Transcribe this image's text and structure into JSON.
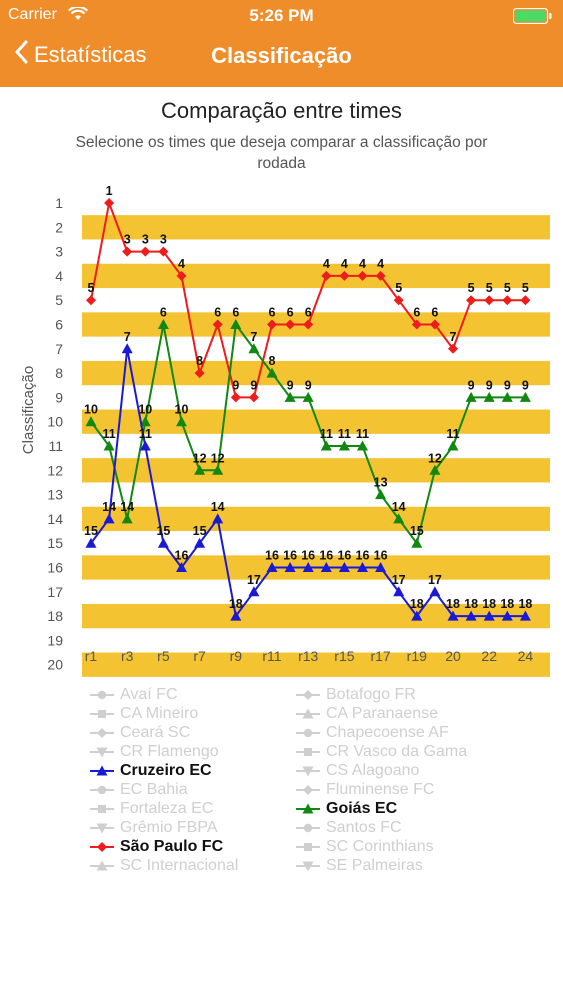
{
  "status_bar": {
    "carrier": "Carrier",
    "time": "5:26 PM"
  },
  "nav": {
    "back_label": "Estatísticas",
    "title": "Classificação"
  },
  "header": {
    "title": "Comparação entre times",
    "subtitle": "Selecione os times que deseja comparar a classificação por rodada"
  },
  "colors": {
    "accent": "#ee8d2a",
    "band": "#f3c331",
    "red": "#ee1c1c",
    "blue": "#1a1ad6",
    "green": "#118811",
    "inactive": "#cfcfcf"
  },
  "chart_data": {
    "type": "line",
    "ylabel": "Classificação",
    "y_inverted": true,
    "ylim": [
      1,
      20
    ],
    "y_ticks": [
      "1",
      "2",
      "3",
      "4",
      "5",
      "6",
      "7",
      "8",
      "9",
      "10",
      "11",
      "12",
      "13",
      "14",
      "15",
      "16",
      "17",
      "18",
      "19",
      "20"
    ],
    "x_ticks": [
      "r1",
      "r3",
      "r5",
      "r7",
      "r9",
      "r11",
      "r13",
      "r15",
      "r17",
      "r19",
      "20",
      "22",
      "24"
    ],
    "x_rounds": [
      1,
      2,
      3,
      4,
      5,
      6,
      7,
      8,
      9,
      10,
      11,
      12,
      13,
      14,
      15,
      16,
      17,
      18,
      19,
      20,
      21,
      22,
      23,
      24,
      25
    ],
    "series": [
      {
        "name": "São Paulo FC",
        "color": "#ee1c1c",
        "marker": "diamond",
        "values": [
          5,
          1,
          3,
          3,
          3,
          4,
          8,
          6,
          9,
          9,
          6,
          6,
          6,
          4,
          4,
          4,
          4,
          5,
          6,
          6,
          7,
          5,
          5,
          5,
          5
        ]
      },
      {
        "name": "Goiás EC",
        "color": "#118811",
        "marker": "triangle",
        "values": [
          10,
          11,
          14,
          10,
          6,
          10,
          12,
          12,
          6,
          7,
          8,
          9,
          9,
          11,
          11,
          11,
          13,
          14,
          15,
          12,
          11,
          9,
          9,
          9,
          9
        ]
      },
      {
        "name": "Cruzeiro EC",
        "color": "#1a1ad6",
        "marker": "triangle",
        "values": [
          15,
          14,
          7,
          11,
          15,
          16,
          15,
          14,
          18,
          17,
          16,
          16,
          16,
          16,
          16,
          16,
          16,
          17,
          18,
          17,
          18,
          18,
          18,
          18,
          18
        ]
      }
    ]
  },
  "legend": {
    "left": [
      {
        "label": "Avaí FC",
        "active": false,
        "marker": "circle"
      },
      {
        "label": "CA Mineiro",
        "active": false,
        "marker": "square"
      },
      {
        "label": "Ceará SC",
        "active": false,
        "marker": "diamond"
      },
      {
        "label": "CR Flamengo",
        "active": false,
        "marker": "triangle-down"
      },
      {
        "label": "Cruzeiro EC",
        "active": true,
        "marker": "triangle",
        "color": "#1a1ad6"
      },
      {
        "label": "EC Bahia",
        "active": false,
        "marker": "circle"
      },
      {
        "label": "Fortaleza EC",
        "active": false,
        "marker": "square"
      },
      {
        "label": "Grêmio FBPA",
        "active": false,
        "marker": "triangle-down"
      },
      {
        "label": "São Paulo FC",
        "active": true,
        "marker": "diamond",
        "color": "#ee1c1c"
      },
      {
        "label": "SC Internacional",
        "active": false,
        "marker": "triangle"
      }
    ],
    "right": [
      {
        "label": "Botafogo FR",
        "active": false,
        "marker": "diamond"
      },
      {
        "label": "CA Paranaense",
        "active": false,
        "marker": "triangle"
      },
      {
        "label": "Chapecoense AF",
        "active": false,
        "marker": "circle"
      },
      {
        "label": "CR Vasco da Gama",
        "active": false,
        "marker": "square"
      },
      {
        "label": "CS Alagoano",
        "active": false,
        "marker": "triangle-down"
      },
      {
        "label": "Fluminense FC",
        "active": false,
        "marker": "diamond"
      },
      {
        "label": "Goiás EC",
        "active": true,
        "marker": "triangle",
        "color": "#118811"
      },
      {
        "label": "Santos FC",
        "active": false,
        "marker": "circle"
      },
      {
        "label": "SC Corinthians",
        "active": false,
        "marker": "square"
      },
      {
        "label": "SE Palmeiras",
        "active": false,
        "marker": "triangle-down"
      }
    ]
  }
}
